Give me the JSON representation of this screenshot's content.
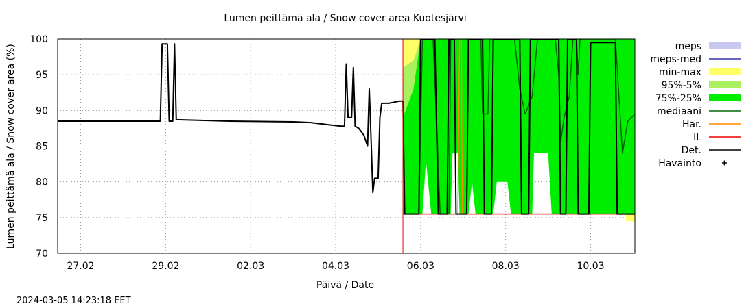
{
  "chart_data": {
    "type": "area",
    "title": "Lumen peittämä ala / Snow cover area Kuotesjärvi",
    "xlabel": "Päivä / Date",
    "ylabel": "Lumen peittämä ala / Snow cover area (%)",
    "timestamp": "2024-03-05 14:23:18 EET",
    "xlim": [
      "2024-02-26 11:00",
      "2024-03-11 01:00"
    ],
    "ylim": [
      70,
      100
    ],
    "yticks": [
      70,
      75,
      80,
      85,
      90,
      95,
      100
    ],
    "xticks": [
      {
        "date": "2024-02-27",
        "label": "27.02"
      },
      {
        "date": "2024-02-29",
        "label": "29.02"
      },
      {
        "date": "2024-03-02",
        "label": "02.03"
      },
      {
        "date": "2024-03-04",
        "label": "04.03"
      },
      {
        "date": "2024-03-06",
        "label": "06.03"
      },
      {
        "date": "2024-03-08",
        "label": "08.03"
      },
      {
        "date": "2024-03-10",
        "label": "10.03"
      }
    ],
    "grid": true,
    "legend_position": "right",
    "legend": [
      {
        "label": "meps",
        "style": "fill",
        "color": "#c8c8f0"
      },
      {
        "label": "meps-med",
        "style": "line",
        "color": "#3333aa"
      },
      {
        "label": "min-max",
        "style": "fill",
        "color": "#ffff66"
      },
      {
        "label": "95%-5%",
        "style": "fill",
        "color": "#aaf060"
      },
      {
        "label": "75%-25%",
        "style": "fill",
        "color": "#00ee00"
      },
      {
        "label": "mediaani",
        "style": "line",
        "color": "#006600"
      },
      {
        "label": "Har.",
        "style": "line",
        "color": "#ff8800"
      },
      {
        "label": "IL",
        "style": "line",
        "color": "#ee0000"
      },
      {
        "label": "Det.",
        "style": "line",
        "color": "#000000"
      },
      {
        "label": "Havainto",
        "style": "marker",
        "color": "#000000"
      }
    ],
    "forecast_start": "2024-03-05 14:00",
    "series": [
      {
        "name": "Det.",
        "points": [
          [
            "2024-02-26 11:00",
            88.5
          ],
          [
            "2024-02-28 21:00",
            88.5
          ],
          [
            "2024-02-28 22:00",
            99.3
          ],
          [
            "2024-02-29 01:00",
            99.3
          ],
          [
            "2024-02-29 02:00",
            88.5
          ],
          [
            "2024-02-29 04:00",
            88.5
          ],
          [
            "2024-02-29 05:00",
            99.3
          ],
          [
            "2024-02-29 06:00",
            88.7
          ],
          [
            "2024-03-01 12:00",
            88.5
          ],
          [
            "2024-03-03 00:00",
            88.4
          ],
          [
            "2024-03-03 10:00",
            88.3
          ],
          [
            "2024-03-03 20:00",
            88.0
          ],
          [
            "2024-03-04 03:00",
            87.8
          ],
          [
            "2024-03-04 05:00",
            87.8
          ],
          [
            "2024-03-04 06:00",
            96.5
          ],
          [
            "2024-03-04 07:00",
            89.0
          ],
          [
            "2024-03-04 09:00",
            89.0
          ],
          [
            "2024-03-04 10:00",
            96.0
          ],
          [
            "2024-03-04 11:00",
            87.8
          ],
          [
            "2024-03-04 13:00",
            87.5
          ],
          [
            "2024-03-04 16:00",
            86.5
          ],
          [
            "2024-03-04 18:00",
            85.0
          ],
          [
            "2024-03-04 19:00",
            93.0
          ],
          [
            "2024-03-04 20:00",
            86.0
          ],
          [
            "2024-03-04 21:00",
            78.5
          ],
          [
            "2024-03-04 22:00",
            80.5
          ],
          [
            "2024-03-05 00:00",
            80.5
          ],
          [
            "2024-03-05 01:00",
            89.0
          ],
          [
            "2024-03-05 02:00",
            91.0
          ],
          [
            "2024-03-05 04:00",
            91.0
          ],
          [
            "2024-03-05 05:00",
            91.0
          ],
          [
            "2024-03-05 06:00",
            91.0
          ],
          [
            "2024-03-05 12:00",
            91.3
          ],
          [
            "2024-03-05 14:00",
            91.3
          ],
          [
            "2024-03-05 15:00",
            75.5
          ],
          [
            "2024-03-05 23:00",
            75.5
          ],
          [
            "2024-03-06 00:00",
            100
          ],
          [
            "2024-03-06 05:00",
            100
          ],
          [
            "2024-03-06 08:00",
            100
          ],
          [
            "2024-03-06 10:00",
            75.5
          ],
          [
            "2024-03-06 15:00",
            75.5
          ],
          [
            "2024-03-06 16:00",
            100
          ],
          [
            "2024-03-06 19:00",
            100
          ],
          [
            "2024-03-06 20:00",
            75.5
          ],
          [
            "2024-03-07 02:00",
            75.5
          ],
          [
            "2024-03-07 03:00",
            100
          ],
          [
            "2024-03-07 11:00",
            100
          ],
          [
            "2024-03-07 12:00",
            75.5
          ],
          [
            "2024-03-07 16:00",
            75.5
          ],
          [
            "2024-03-07 17:00",
            100
          ],
          [
            "2024-03-08 08:00",
            100
          ],
          [
            "2024-03-08 09:00",
            75.5
          ],
          [
            "2024-03-08 13:00",
            75.5
          ],
          [
            "2024-03-08 14:00",
            100
          ],
          [
            "2024-03-09 06:00",
            100
          ],
          [
            "2024-03-09 07:00",
            75.5
          ],
          [
            "2024-03-09 10:00",
            75.5
          ],
          [
            "2024-03-09 11:00",
            100
          ],
          [
            "2024-03-09 16:00",
            100
          ],
          [
            "2024-03-09 17:00",
            75.5
          ],
          [
            "2024-03-09 23:00",
            75.5
          ],
          [
            "2024-03-10 00:00",
            99.5
          ],
          [
            "2024-03-10 14:00",
            99.5
          ],
          [
            "2024-03-10 15:00",
            75.5
          ],
          [
            "2024-03-11 01:00",
            75.5
          ]
        ]
      },
      {
        "name": "mediaani",
        "points": [
          [
            "2024-03-05 14:00",
            75.5
          ],
          [
            "2024-03-05 23:00",
            75.5
          ],
          [
            "2024-03-06 01:00",
            100
          ],
          [
            "2024-03-06 07:00",
            100
          ],
          [
            "2024-03-06 09:00",
            88.5
          ],
          [
            "2024-03-06 11:00",
            75.5
          ],
          [
            "2024-03-06 16:00",
            75.5
          ],
          [
            "2024-03-06 17:00",
            100
          ],
          [
            "2024-03-07 10:00",
            100
          ],
          [
            "2024-03-07 11:00",
            89.5
          ],
          [
            "2024-03-07 14:00",
            89.5
          ],
          [
            "2024-03-07 15:00",
            100
          ],
          [
            "2024-03-08 05:00",
            100
          ],
          [
            "2024-03-08 08:00",
            93.0
          ],
          [
            "2024-03-08 11:00",
            89.5
          ],
          [
            "2024-03-08 15:00",
            92.0
          ],
          [
            "2024-03-08 18:00",
            100
          ],
          [
            "2024-03-09 04:00",
            100
          ],
          [
            "2024-03-09 06:00",
            95.0
          ],
          [
            "2024-03-09 07:00",
            85.5
          ],
          [
            "2024-03-09 09:00",
            89.0
          ],
          [
            "2024-03-09 12:00",
            92.0
          ],
          [
            "2024-03-09 14:00",
            100
          ],
          [
            "2024-03-09 16:00",
            100
          ],
          [
            "2024-03-09 17:00",
            95.0
          ],
          [
            "2024-03-09 18:00",
            100
          ],
          [
            "2024-03-10 00:00",
            100
          ],
          [
            "2024-03-10 14:00",
            100
          ],
          [
            "2024-03-10 18:00",
            84.0
          ],
          [
            "2024-03-10 21:00",
            88.5
          ],
          [
            "2024-03-11 01:00",
            89.5
          ]
        ]
      },
      {
        "name": "IL",
        "points": [
          [
            "2024-03-05 14:00",
            75.5
          ],
          [
            "2024-03-11 01:00",
            75.5
          ]
        ]
      },
      {
        "name": "Har.",
        "points": [
          [
            "2024-03-06 21:00",
            75.5
          ],
          [
            "2024-03-06 22:00",
            100
          ],
          [
            "2024-03-06 23:00",
            100
          ],
          [
            "2024-03-06 23:30",
            75.5
          ]
        ]
      }
    ],
    "bands": [
      {
        "name": "min-max",
        "upper": [
          [
            "2024-03-05 14:00",
            100
          ],
          [
            "2024-03-11 01:00",
            100
          ]
        ],
        "lower": [
          [
            "2024-03-05 14:00",
            75.5
          ],
          [
            "2024-03-06 00:00",
            89.5
          ],
          [
            "2024-03-06 04:00",
            89.5
          ],
          [
            "2024-03-06 06:00",
            75.5
          ],
          [
            "2024-03-06 14:00",
            75.5
          ],
          [
            "2024-03-06 16:00",
            90.0
          ],
          [
            "2024-03-06 22:00",
            90.0
          ],
          [
            "2024-03-06 23:00",
            86.5
          ],
          [
            "2024-03-07 08:00",
            89.0
          ],
          [
            "2024-03-07 10:00",
            75.5
          ],
          [
            "2024-03-07 16:00",
            75.5
          ],
          [
            "2024-03-07 17:00",
            89.5
          ],
          [
            "2024-03-08 06:00",
            89.5
          ],
          [
            "2024-03-08 08:00",
            75.5
          ],
          [
            "2024-03-08 14:00",
            75.5
          ],
          [
            "2024-03-08 16:00",
            89.5
          ],
          [
            "2024-03-09 04:00",
            89.5
          ],
          [
            "2024-03-09 06:00",
            75.5
          ],
          [
            "2024-03-09 15:00",
            75.5
          ],
          [
            "2024-03-09 16:00",
            86.0
          ],
          [
            "2024-03-10 00:00",
            86.0
          ],
          [
            "2024-03-10 02:00",
            75.5
          ],
          [
            "2024-03-10 10:00",
            75.5
          ],
          [
            "2024-03-10 11:00",
            86.0
          ],
          [
            "2024-03-10 18:00",
            85.5
          ],
          [
            "2024-03-10 20:00",
            74.5
          ],
          [
            "2024-03-11 01:00",
            74.5
          ]
        ]
      },
      {
        "name": "95%-5%",
        "upper": [
          [
            "2024-03-05 14:00",
            96.0
          ],
          [
            "2024-03-05 20:00",
            97.0
          ],
          [
            "2024-03-06 00:00",
            100
          ],
          [
            "2024-03-11 01:00",
            100
          ]
        ],
        "lower": [
          [
            "2024-03-05 14:00",
            75.5
          ],
          [
            "2024-03-06 00:00",
            75.5
          ],
          [
            "2024-03-06 02:00",
            88.0
          ],
          [
            "2024-03-06 04:00",
            88.0
          ],
          [
            "2024-03-06 06:00",
            75.5
          ],
          [
            "2024-03-06 16:00",
            75.5
          ],
          [
            "2024-03-06 17:00",
            88.0
          ],
          [
            "2024-03-06 22:00",
            88.0
          ],
          [
            "2024-03-06 23:00",
            75.5
          ],
          [
            "2024-03-07 02:00",
            75.5
          ],
          [
            "2024-03-07 03:00",
            87.5
          ],
          [
            "2024-03-07 09:00",
            89.5
          ],
          [
            "2024-03-07 10:00",
            75.5
          ],
          [
            "2024-03-07 16:00",
            75.5
          ],
          [
            "2024-03-07 17:00",
            89.5
          ],
          [
            "2024-03-08 06:00",
            89.5
          ],
          [
            "2024-03-08 08:00",
            75.5
          ],
          [
            "2024-03-08 14:00",
            75.5
          ],
          [
            "2024-03-08 15:00",
            88.0
          ],
          [
            "2024-03-09 02:00",
            88.5
          ],
          [
            "2024-03-09 04:00",
            75.5
          ],
          [
            "2024-03-09 16:00",
            75.5
          ],
          [
            "2024-03-09 17:00",
            86.0
          ],
          [
            "2024-03-10 00:00",
            86.0
          ],
          [
            "2024-03-10 02:00",
            75.5
          ],
          [
            "2024-03-11 01:00",
            75.5
          ]
        ]
      },
      {
        "name": "75%-25%",
        "upper": [
          [
            "2024-03-05 14:00",
            89.0
          ],
          [
            "2024-03-05 20:00",
            93.0
          ],
          [
            "2024-03-06 00:00",
            100
          ],
          [
            "2024-03-11 01:00",
            100
          ]
        ],
        "lower": [
          [
            "2024-03-05 14:00",
            75.5
          ],
          [
            "2024-03-06 01:00",
            75.5
          ],
          [
            "2024-03-06 03:00",
            83.0
          ],
          [
            "2024-03-06 06:00",
            75.5
          ],
          [
            "2024-03-06 17:00",
            75.5
          ],
          [
            "2024-03-06 18:00",
            84.0
          ],
          [
            "2024-03-06 21:00",
            84.0
          ],
          [
            "2024-03-06 22:00",
            75.5
          ],
          [
            "2024-03-07 03:00",
            75.5
          ],
          [
            "2024-03-07 05:00",
            80.0
          ],
          [
            "2024-03-07 07:00",
            75.5
          ],
          [
            "2024-03-07 17:00",
            75.5
          ],
          [
            "2024-03-07 19:00",
            80.0
          ],
          [
            "2024-03-08 01:00",
            80.0
          ],
          [
            "2024-03-08 03:00",
            75.5
          ],
          [
            "2024-03-08 15:00",
            75.5
          ],
          [
            "2024-03-08 16:00",
            84.0
          ],
          [
            "2024-03-09 00:00",
            84.0
          ],
          [
            "2024-03-09 02:00",
            75.5
          ],
          [
            "2024-03-11 01:00",
            75.5
          ]
        ]
      }
    ]
  }
}
